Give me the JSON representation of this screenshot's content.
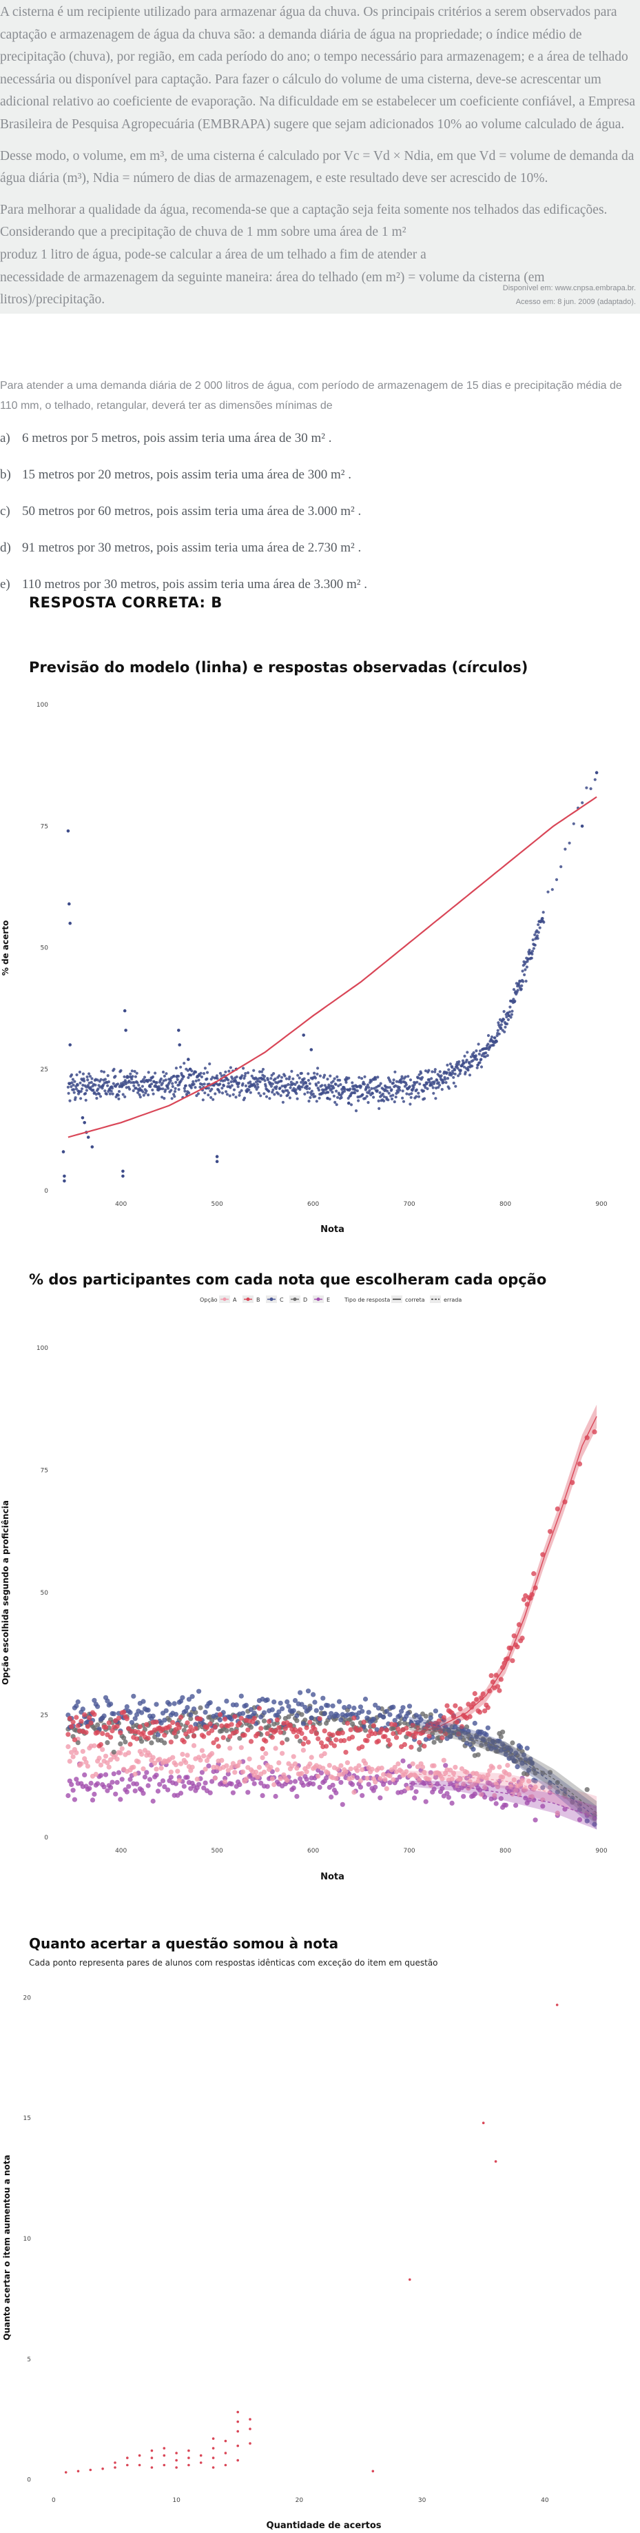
{
  "passage": {
    "p1": "A cisterna é um recipiente utilizado para armazenar água da chuva. Os principais critérios a serem observados para captação e armazenagem de água da chuva são: a demanda diária de água na propriedade; o índice médio de precipitação (chuva), por região, em cada período do ano; o tempo necessário para armazenagem; e a área de telhado necessária ou disponível para captação. Para fazer o cálculo do volume de uma cisterna, deve-se acrescentar um adicional relativo ao coeficiente de evaporação. Na dificuldade em se estabelecer um coeficiente confiável, a Empresa Brasileira de Pesquisa Agropecuária (EMBRAPA) sugere que sejam adicionados 10% ao volume calculado de água.",
    "p2": "Desse modo, o volume, em m³, de uma cisterna é calculado por Vc = Vd × Ndia, em que Vd = volume de demanda da água diária (m³), Ndia = número de dias de armazenagem, e este resultado deve ser acrescido de 10%.",
    "p3": "Para melhorar a qualidade da água, recomenda-se que a captação seja feita somente nos telhados das edificações.",
    "p4": "Considerando que a precipitação de chuva de 1 mm sobre uma área de 1 m²",
    "p5": "produz 1 litro de água, pode-se calcular a área de um telhado a fim de atender a",
    "p6": "necessidade de armazenagem da seguinte maneira: área do telhado (em m²) = volume da cisterna (em litros)/precipitação.",
    "source1": "Disponível em: www.cnpsa.embrapa.br.",
    "source2": "Acesso em: 8 jun. 2009 (adaptado)."
  },
  "question": {
    "prompt": "Para atender a uma demanda diária de 2 000 litros de água, com período de armazenagem de 15 dias e precipitação média de 110 mm, o telhado, retangular, deverá ter as dimensões mínimas de",
    "options": [
      {
        "letter": "a)",
        "text": "6 metros por 5 metros, pois assim teria uma área de 30 m² ."
      },
      {
        "letter": "b)",
        "text": "15 metros por 20 metros, pois assim teria uma área de 300 m² ."
      },
      {
        "letter": "c)",
        "text": "50 metros por 60 metros, pois assim teria uma área de 3.000 m² ."
      },
      {
        "letter": "d)",
        "text": "91 metros por 30 metros, pois assim teria uma área de 2.730 m² ."
      },
      {
        "letter": "e)",
        "text": "110 metros por 30 metros, pois assim teria uma área de 3.300 m² ."
      }
    ],
    "answer": "RESPOSTA CORRETA: B"
  },
  "colors": {
    "observed": "#3e4c8a",
    "model": "#d94657",
    "A": "#f19cae",
    "B": "#d94657",
    "C": "#4a5796",
    "D": "#6a6a6a",
    "E": "#a24fae"
  },
  "chart_data": [
    {
      "type": "scatter",
      "title": "Previsão do modelo (linha) e respostas observadas (círculos)",
      "xlabel": "Nota",
      "ylabel": "% de acerto",
      "x_ticks": [
        "400",
        "500",
        "600",
        "700",
        "800",
        "900"
      ],
      "y_ticks": [
        "0",
        "25",
        "50",
        "75",
        "100"
      ],
      "xlim": [
        335,
        905
      ],
      "ylim": [
        0,
        100
      ],
      "model_line": {
        "x": [
          345,
          400,
          450,
          500,
          550,
          600,
          650,
          700,
          750,
          800,
          850,
          895
        ],
        "y": [
          11,
          14,
          17.5,
          22.5,
          28.5,
          36,
          43,
          51,
          59,
          67,
          75,
          81
        ]
      },
      "observed_band": {
        "x": [
          345,
          400,
          500,
          600,
          650,
          700,
          730,
          760,
          780,
          800,
          820,
          840,
          860,
          880,
          895
        ],
        "y": [
          21.5,
          21.8,
          22.2,
          21.5,
          20.5,
          21,
          22.5,
          25.5,
          29,
          35,
          45,
          57,
          68,
          80,
          86
        ]
      },
      "outliers": [
        {
          "x": 345,
          "y": 74
        },
        {
          "x": 346,
          "y": 59
        },
        {
          "x": 347,
          "y": 55
        },
        {
          "x": 347,
          "y": 30
        },
        {
          "x": 340,
          "y": 8
        },
        {
          "x": 341,
          "y": 3
        },
        {
          "x": 341,
          "y": 2
        },
        {
          "x": 360,
          "y": 15
        },
        {
          "x": 362,
          "y": 14
        },
        {
          "x": 364,
          "y": 12
        },
        {
          "x": 366,
          "y": 11
        },
        {
          "x": 370,
          "y": 9
        },
        {
          "x": 402,
          "y": 4
        },
        {
          "x": 402,
          "y": 3
        },
        {
          "x": 404,
          "y": 37
        },
        {
          "x": 405,
          "y": 33
        },
        {
          "x": 460,
          "y": 33
        },
        {
          "x": 461,
          "y": 30
        },
        {
          "x": 470,
          "y": 27
        },
        {
          "x": 472,
          "y": 25
        },
        {
          "x": 500,
          "y": 7
        },
        {
          "x": 500,
          "y": 6
        },
        {
          "x": 520,
          "y": 25
        },
        {
          "x": 590,
          "y": 32
        },
        {
          "x": 598,
          "y": 29
        },
        {
          "x": 615,
          "y": 19
        },
        {
          "x": 637,
          "y": 18
        },
        {
          "x": 880,
          "y": 75
        },
        {
          "x": 895,
          "y": 86
        }
      ]
    },
    {
      "type": "scatter",
      "title": "% dos participantes com cada nota que escolheram cada opção",
      "xlabel": "Nota",
      "ylabel": "Opção escolhida segundo a proficiência",
      "x_ticks": [
        "400",
        "500",
        "600",
        "700",
        "800",
        "900"
      ],
      "y_ticks": [
        "0",
        "25",
        "50",
        "75",
        "100"
      ],
      "xlim": [
        335,
        905
      ],
      "ylim": [
        0,
        100
      ],
      "legend": {
        "position": "top",
        "option_title": "Opção",
        "option_labels": [
          "A",
          "B",
          "C",
          "D",
          "E"
        ],
        "type_title": "Tipo de resposta",
        "type_labels": [
          "correta",
          "errada"
        ]
      },
      "series": [
        {
          "name": "A",
          "x": [
            345,
            400,
            500,
            600,
            650,
            700,
            750,
            800,
            850,
            895
          ],
          "y": [
            17,
            16,
            15,
            14,
            13.5,
            13,
            12.5,
            11.5,
            9,
            6
          ]
        },
        {
          "name": "B",
          "x": [
            345,
            400,
            500,
            600,
            650,
            700,
            730,
            760,
            780,
            800,
            820,
            840,
            860,
            880,
            895
          ],
          "y": [
            21.5,
            21.8,
            22.2,
            21.5,
            20.5,
            21,
            22.5,
            25.5,
            29,
            35,
            45,
            57,
            68,
            80,
            86
          ]
        },
        {
          "name": "C",
          "x": [
            345,
            400,
            500,
            600,
            650,
            700,
            750,
            800,
            850,
            895
          ],
          "y": [
            25,
            25.5,
            26,
            26,
            25,
            24,
            22,
            18,
            11,
            4
          ]
        },
        {
          "name": "D",
          "x": [
            345,
            400,
            500,
            600,
            650,
            700,
            750,
            800,
            850,
            895
          ],
          "y": [
            22,
            22,
            23,
            23.5,
            23,
            22.5,
            21,
            18,
            12,
            5
          ]
        },
        {
          "name": "E",
          "x": [
            345,
            400,
            500,
            600,
            650,
            700,
            750,
            800,
            850,
            895
          ],
          "y": [
            11,
            11,
            11.5,
            11.5,
            11.5,
            11,
            10.5,
            9,
            7,
            4
          ]
        }
      ]
    },
    {
      "type": "scatter",
      "title": "Quanto acertar a questão somou à nota",
      "subtitle": "Cada ponto representa pares de alunos com respostas idênticas com exceção do item em questão",
      "xlabel": "Quantidade de acertos",
      "ylabel": "Quanto acertar o item aumentou a nota",
      "x_ticks": [
        "0",
        "10",
        "20",
        "30",
        "40"
      ],
      "y_ticks": [
        "0",
        "5",
        "10",
        "15",
        "20"
      ],
      "xlim": [
        -1,
        45
      ],
      "ylim": [
        -0.3,
        20.5
      ],
      "points": [
        {
          "x": 1,
          "y": 0.3
        },
        {
          "x": 2,
          "y": 0.35
        },
        {
          "x": 3,
          "y": 0.4
        },
        {
          "x": 4,
          "y": 0.45
        },
        {
          "x": 5,
          "y": 0.5
        },
        {
          "x": 5,
          "y": 0.7
        },
        {
          "x": 6,
          "y": 0.6
        },
        {
          "x": 6,
          "y": 0.9
        },
        {
          "x": 7,
          "y": 0.6
        },
        {
          "x": 7,
          "y": 1.0
        },
        {
          "x": 8,
          "y": 0.5
        },
        {
          "x": 8,
          "y": 0.9
        },
        {
          "x": 8,
          "y": 1.2
        },
        {
          "x": 9,
          "y": 0.6
        },
        {
          "x": 9,
          "y": 1.0
        },
        {
          "x": 9,
          "y": 1.3
        },
        {
          "x": 10,
          "y": 0.5
        },
        {
          "x": 10,
          "y": 0.8
        },
        {
          "x": 10,
          "y": 1.1
        },
        {
          "x": 11,
          "y": 0.6
        },
        {
          "x": 11,
          "y": 0.9
        },
        {
          "x": 11,
          "y": 1.2
        },
        {
          "x": 12,
          "y": 0.7
        },
        {
          "x": 12,
          "y": 1.0
        },
        {
          "x": 13,
          "y": 0.5
        },
        {
          "x": 13,
          "y": 0.9
        },
        {
          "x": 13,
          "y": 1.3
        },
        {
          "x": 13,
          "y": 1.7
        },
        {
          "x": 14,
          "y": 0.6
        },
        {
          "x": 14,
          "y": 1.1
        },
        {
          "x": 14,
          "y": 1.6
        },
        {
          "x": 15,
          "y": 0.8
        },
        {
          "x": 15,
          "y": 1.4
        },
        {
          "x": 15,
          "y": 2.0
        },
        {
          "x": 15,
          "y": 2.4
        },
        {
          "x": 15,
          "y": 2.8
        },
        {
          "x": 16,
          "y": 1.5
        },
        {
          "x": 16,
          "y": 2.1
        },
        {
          "x": 16,
          "y": 2.5
        },
        {
          "x": 26,
          "y": 0.35
        },
        {
          "x": 29,
          "y": 8.3
        },
        {
          "x": 35,
          "y": 14.8
        },
        {
          "x": 36,
          "y": 13.2
        },
        {
          "x": 41,
          "y": 19.7
        }
      ]
    }
  ]
}
